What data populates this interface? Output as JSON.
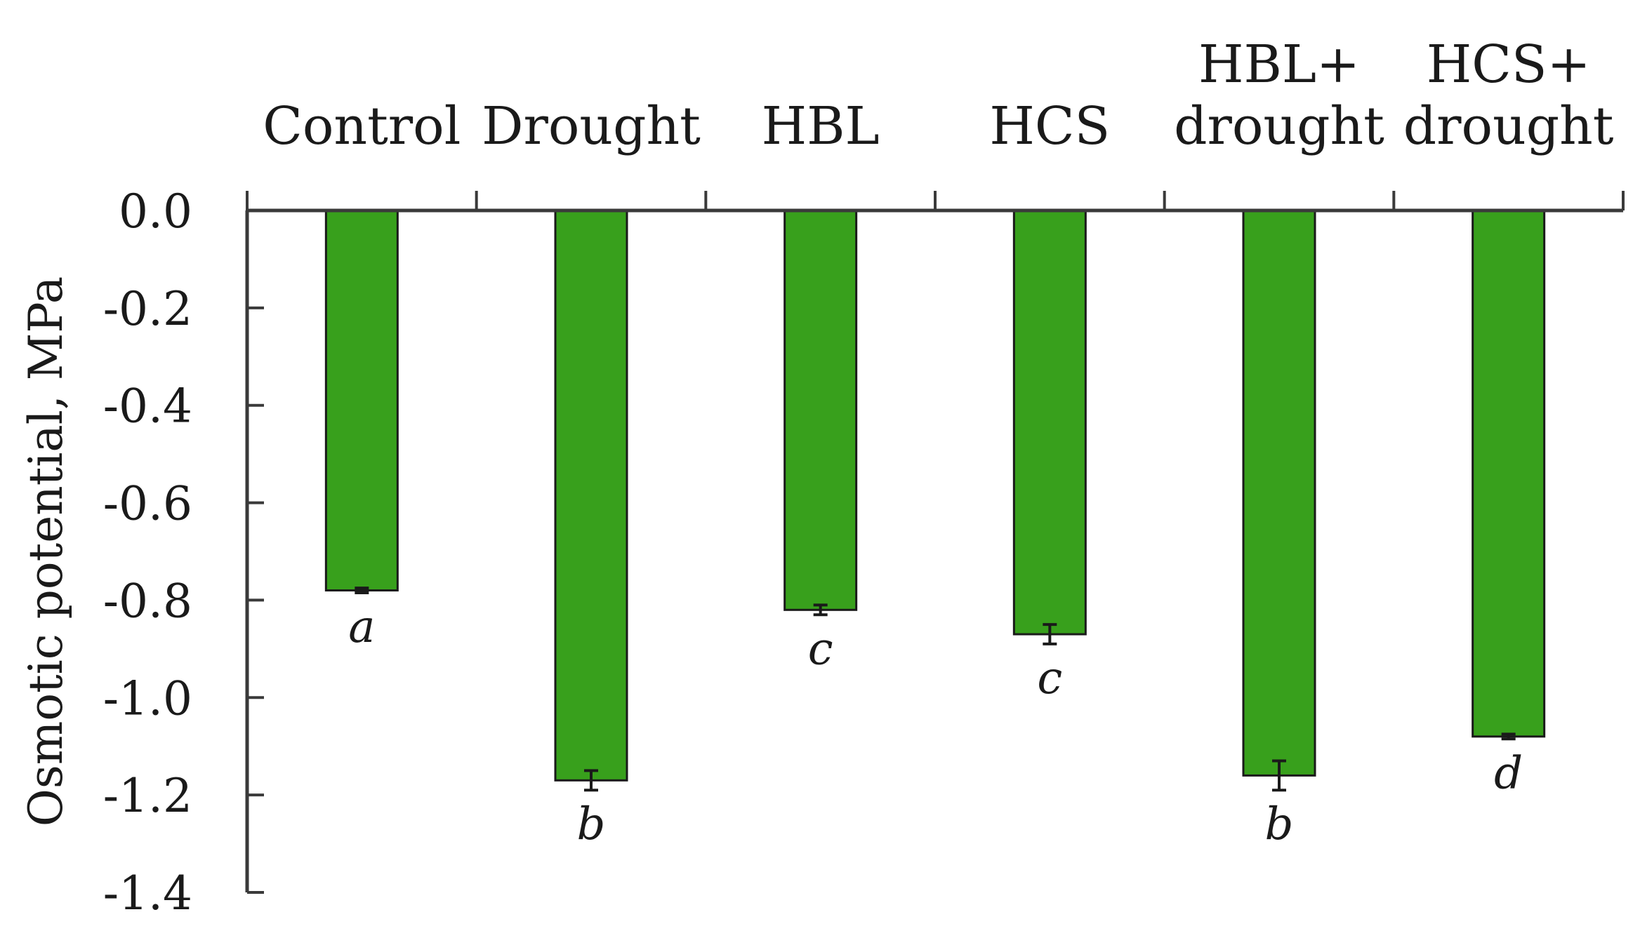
{
  "chart_data": {
    "type": "bar",
    "title": "",
    "xlabel": "",
    "ylabel": "Osmotic potential, MPa",
    "categories": [
      [
        "Control"
      ],
      [
        "Drought"
      ],
      [
        "HBL"
      ],
      [
        "HCS"
      ],
      [
        "HBL+",
        "drought"
      ],
      [
        "HCS+",
        "drought"
      ]
    ],
    "values": [
      -0.78,
      -1.17,
      -0.82,
      -0.87,
      -1.16,
      -1.08
    ],
    "errors": [
      0.005,
      0.02,
      0.01,
      0.02,
      0.03,
      0.005
    ],
    "significance_letters": [
      "a",
      "b",
      "c",
      "c",
      "b",
      "d"
    ],
    "ylim": [
      -1.4,
      0.0
    ],
    "yticks": [
      0.0,
      -0.2,
      -0.4,
      -0.6,
      -0.8,
      -1.0,
      -1.2,
      -1.4
    ],
    "ytick_labels": [
      "0.0",
      "-0.2",
      "-0.4",
      "-0.6",
      "-0.8",
      "-1.0",
      "-1.2",
      "-1.4"
    ],
    "x_axis_position": "top",
    "grid": false,
    "legend": "none",
    "bar_color": "#38a01c"
  }
}
